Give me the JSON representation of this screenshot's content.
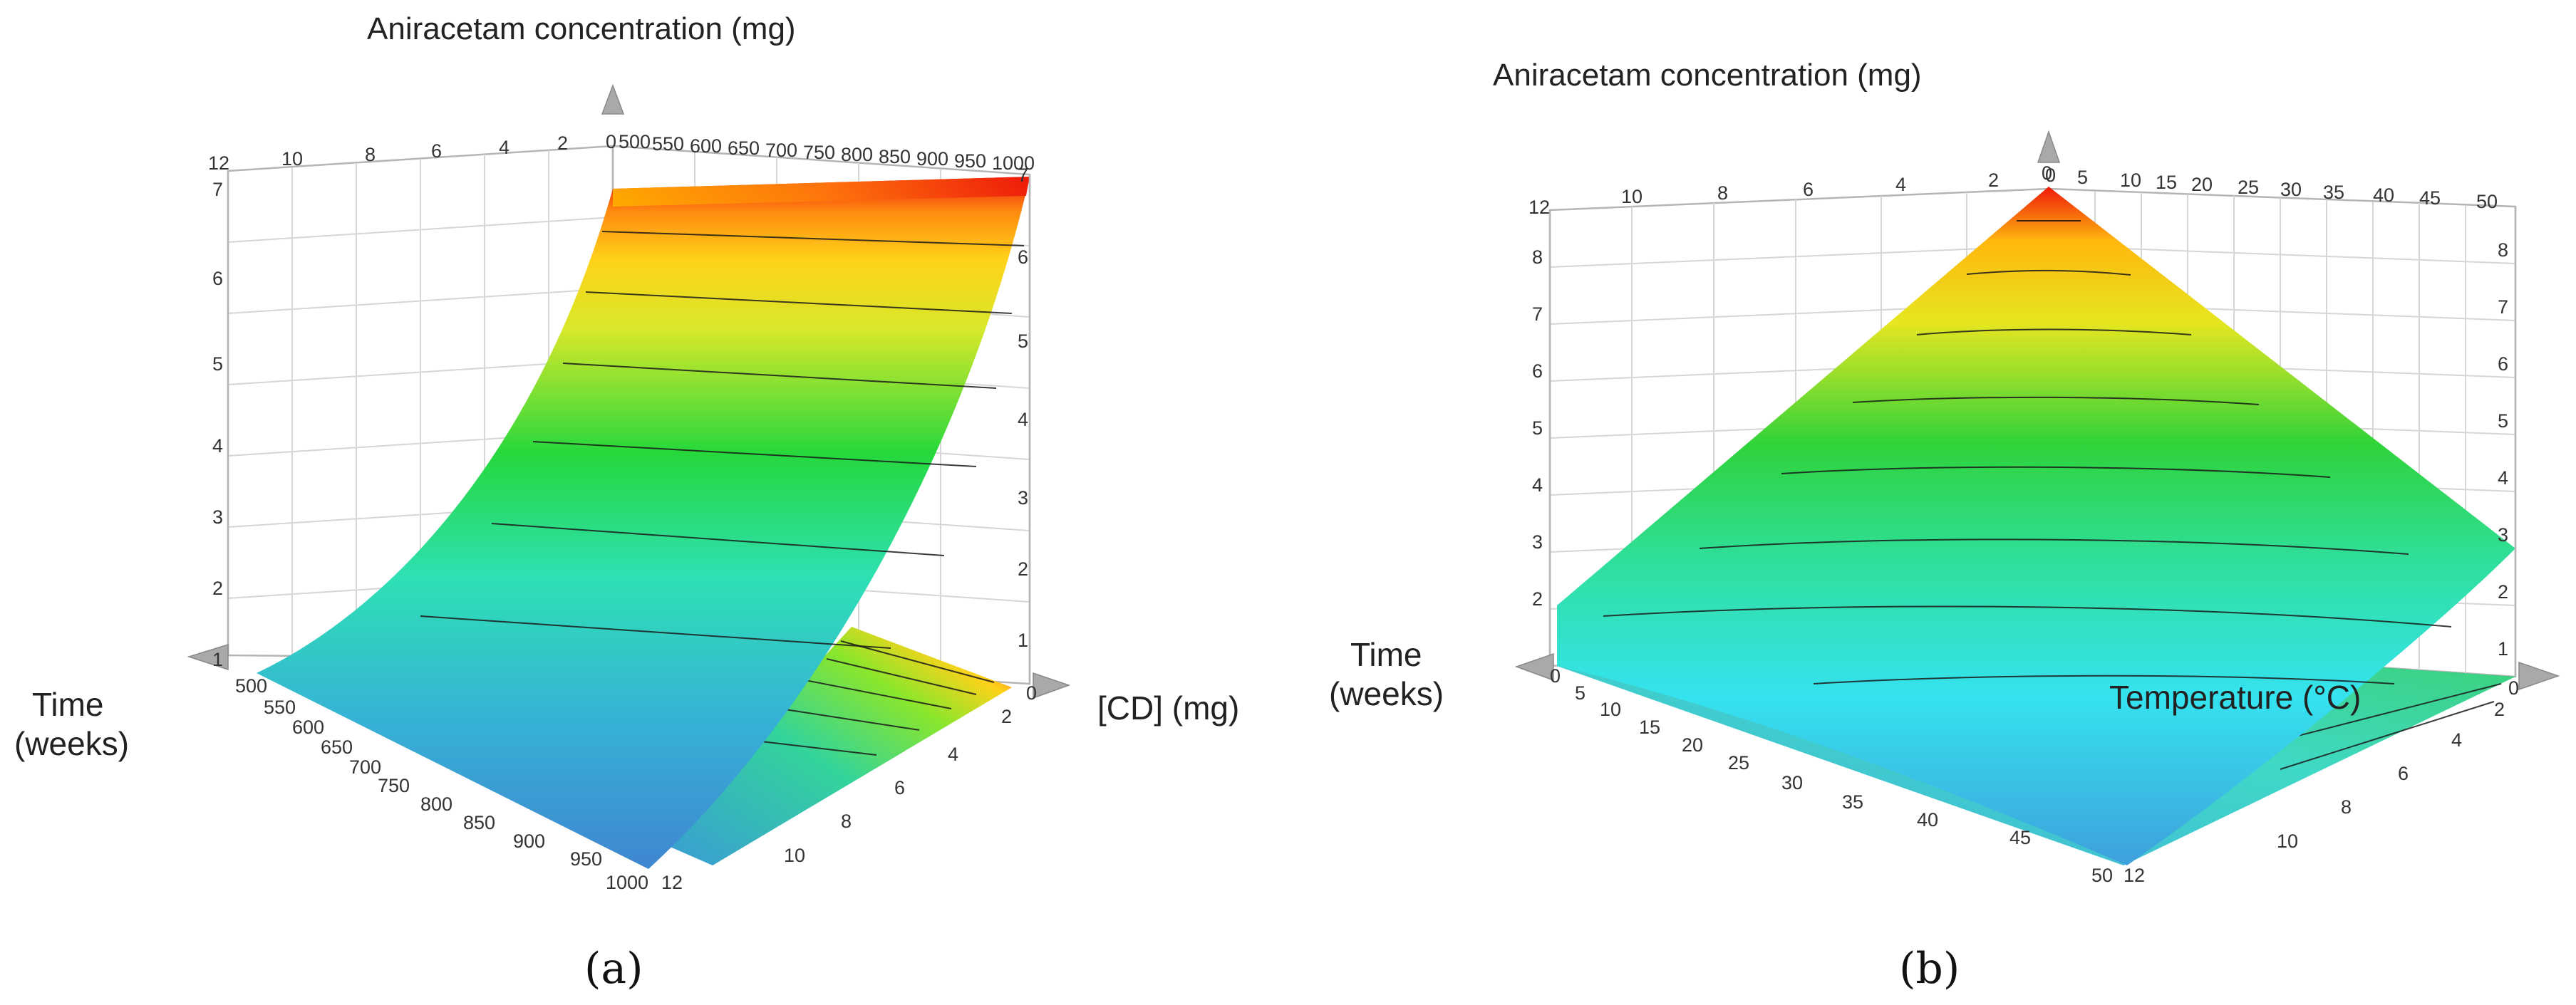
{
  "chart_data": [
    {
      "type": "surface3d",
      "panel_label": "(a)",
      "title": "Aniracetam concentration (mg)",
      "xlabel": "[CD] (mg)",
      "ylabel_line1": "Time",
      "ylabel_line2": "(weeks)",
      "cd_ticks": [
        "500",
        "550",
        "600",
        "650",
        "700",
        "750",
        "800",
        "850",
        "900",
        "950",
        "1000"
      ],
      "time_ticks_back": [
        "12",
        "10",
        "8",
        "6",
        "4",
        "2",
        "0"
      ],
      "time_ticks_front": [
        "0",
        "2",
        "4",
        "6",
        "8",
        "10",
        "12"
      ],
      "conc_ticks": [
        "1",
        "2",
        "3",
        "4",
        "5",
        "6",
        "7"
      ],
      "front_cd_ticks": [
        "500",
        "550",
        "600",
        "650",
        "700",
        "750",
        "800",
        "850",
        "900",
        "950",
        "1000"
      ],
      "ylim": [
        0,
        7
      ],
      "description_values": {
        "min": 1,
        "max": 7
      }
    },
    {
      "type": "surface3d",
      "panel_label": "(b)",
      "title": "Aniracetam concentration (mg)",
      "xlabel": "Temperature (°C)",
      "ylabel_line1": "Time",
      "ylabel_line2": "(weeks)",
      "temp_ticks": [
        "0",
        "5",
        "10",
        "15",
        "20",
        "25",
        "30",
        "35",
        "40",
        "45",
        "50"
      ],
      "time_ticks_back": [
        "12",
        "10",
        "8",
        "6",
        "4",
        "2",
        "0"
      ],
      "time_ticks_front": [
        "0",
        "2",
        "4",
        "6",
        "8",
        "10",
        "12"
      ],
      "conc_ticks": [
        "1",
        "2",
        "3",
        "4",
        "5",
        "6",
        "7",
        "8"
      ],
      "ylim": [
        0,
        9
      ],
      "description_values": {
        "min": 1,
        "max": 9
      }
    }
  ]
}
